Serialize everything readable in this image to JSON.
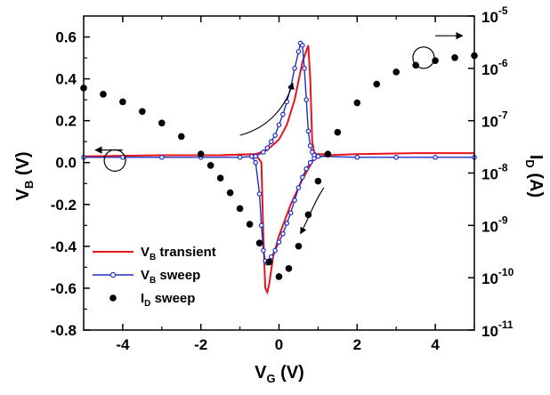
{
  "chart_data": {
    "type": "line",
    "x_axis": {
      "label_main": "V",
      "label_sub": "G",
      "label_unit": " (V)",
      "range": [
        -5,
        5
      ],
      "ticks": [
        -4,
        -2,
        0,
        2,
        4
      ],
      "tick_labels": [
        "-4",
        "-2",
        "0",
        "2",
        "4"
      ]
    },
    "y_left": {
      "label_main": "V",
      "label_sub": "B",
      "label_unit": " (V)",
      "range": [
        -0.8,
        0.7
      ],
      "ticks": [
        -0.8,
        -0.6,
        -0.4,
        -0.2,
        0.0,
        0.2,
        0.4,
        0.6
      ],
      "tick_labels": [
        "-0.8",
        "-0.6",
        "-0.4",
        "-0.2",
        "0.0",
        "0.2",
        "0.4",
        "0.6"
      ]
    },
    "y_right": {
      "label_main": "I",
      "label_sub": "D",
      "label_unit": " (A)",
      "scale": "log",
      "range": [
        1e-11,
        1e-05
      ],
      "tick_exponents": [
        -11,
        -10,
        -9,
        -8,
        -7,
        -6,
        -5
      ],
      "tick_base": "10"
    },
    "grid": false,
    "legend_position": "bottom-left",
    "series": [
      {
        "name_main": "V",
        "name_sub": "B",
        "name_rest": " transient",
        "color": "#e8141c",
        "marker": "none",
        "axis": "left",
        "x": [
          -5,
          -3,
          -1.5,
          -0.6,
          -0.45,
          -0.4,
          -0.35,
          -0.3,
          -0.25,
          -0.15,
          0,
          0.3,
          0.6,
          0.9,
          1.2,
          2,
          3.5,
          5
        ],
        "y": [
          0.03,
          0.035,
          0.035,
          0.04,
          0.0,
          -0.35,
          -0.6,
          -0.62,
          -0.58,
          -0.45,
          -0.35,
          -0.2,
          -0.08,
          0.02,
          0.035,
          0.04,
          0.045,
          0.045
        ]
      },
      {
        "name_main": "V",
        "name_sub": "B",
        "name_rest": " transient",
        "color": "#e8141c",
        "marker": "none",
        "axis": "left",
        "legend": false,
        "x": [
          -1.5,
          -0.6,
          -0.3,
          0,
          0.2,
          0.4,
          0.6,
          0.75,
          0.8,
          0.85,
          0.9,
          0.95,
          1.05,
          1.3
        ],
        "y": [
          0.035,
          0.04,
          0.06,
          0.11,
          0.18,
          0.3,
          0.48,
          0.56,
          0.4,
          0.1,
          0.05,
          0.04,
          0.04,
          0.04
        ]
      },
      {
        "name_main": "V",
        "name_sub": "B",
        "name_rest": " sweep",
        "color": "#1f2fc4",
        "marker": "circle-open",
        "axis": "left",
        "x": [
          -5,
          -4,
          -3,
          -2,
          -1,
          -0.6,
          -0.4,
          -0.3,
          -0.2,
          -0.1,
          0,
          0.1,
          0.2,
          0.3,
          0.4,
          0.5,
          0.55,
          0.6,
          0.65,
          0.7,
          0.75,
          0.8,
          0.85,
          0.9,
          1.0,
          2,
          3,
          4,
          5
        ],
        "y": [
          0.025,
          0.025,
          0.025,
          0.025,
          0.025,
          0.03,
          0.05,
          0.07,
          0.1,
          0.13,
          0.18,
          0.23,
          0.29,
          0.36,
          0.45,
          0.53,
          0.57,
          0.56,
          0.45,
          0.3,
          0.15,
          0.08,
          0.05,
          0.035,
          0.03,
          0.025,
          0.025,
          0.025,
          0.025
        ]
      },
      {
        "name_main": "V",
        "name_sub": "B",
        "name_rest": " sweep",
        "color": "#1f2fc4",
        "marker": "circle-open",
        "axis": "left",
        "legend": false,
        "x": [
          -0.7,
          -0.6,
          -0.5,
          -0.45,
          -0.4,
          -0.35,
          -0.3,
          -0.25,
          -0.2,
          -0.1,
          0,
          0.1,
          0.2,
          0.3,
          0.4,
          0.5,
          0.6,
          0.7,
          0.8,
          0.9,
          1.0
        ],
        "y": [
          0.03,
          0.0,
          -0.15,
          -0.3,
          -0.42,
          -0.47,
          -0.48,
          -0.47,
          -0.45,
          -0.42,
          -0.38,
          -0.34,
          -0.29,
          -0.24,
          -0.18,
          -0.12,
          -0.07,
          -0.03,
          0.0,
          0.02,
          0.03
        ]
      },
      {
        "name_main": "I",
        "name_sub": "D",
        "name_rest": " sweep",
        "color": "#000000",
        "marker": "circle-filled",
        "axis": "right",
        "x": [
          -5,
          -4.5,
          -4,
          -3.5,
          -3,
          -2.5,
          -2,
          -1.75,
          -1.5,
          -1.25,
          -1,
          -0.75,
          -0.5,
          -0.25,
          0,
          0.25,
          0.5,
          0.75,
          1,
          1.25,
          1.5,
          2,
          2.5,
          3,
          3.5,
          4,
          4.5,
          5
        ],
        "y": [
          4.2e-07,
          3.2e-07,
          2.3e-07,
          1.5e-07,
          9e-08,
          5e-08,
          2.3e-08,
          1.4e-08,
          8e-09,
          4.2e-09,
          2.1e-09,
          1.05e-09,
          4.6e-10,
          2e-10,
          1.05e-10,
          1.5e-10,
          4e-10,
          1.6e-09,
          7e-09,
          2.3e-08,
          6e-08,
          2.2e-07,
          5e-07,
          8.5e-07,
          1.15e-06,
          1.4e-06,
          1.6e-06,
          1.75e-06
        ]
      }
    ],
    "annotations": [
      {
        "type": "circle",
        "x": -4.2,
        "axis": "left",
        "y": 0.01
      },
      {
        "type": "arrow",
        "from_x": -4.0,
        "to_x": -4.7,
        "axis": "left",
        "y": 0.06
      },
      {
        "type": "circle",
        "x": 3.7,
        "axis": "right",
        "y": 1.6e-06
      },
      {
        "type": "arrow",
        "from_x": 4.0,
        "to_x": 4.7,
        "axis": "right",
        "y": 4.2e-06
      },
      {
        "type": "curved-arrow",
        "x": [
          -1.0,
          -0.2,
          0.2,
          0.35
        ],
        "axis": "left",
        "y": [
          0.13,
          0.17,
          0.28,
          0.38
        ]
      },
      {
        "type": "curved-arrow",
        "x": [
          1.15,
          0.95,
          0.75,
          0.55
        ],
        "axis": "left",
        "y": [
          -0.12,
          -0.17,
          -0.27,
          -0.34
        ]
      }
    ]
  }
}
